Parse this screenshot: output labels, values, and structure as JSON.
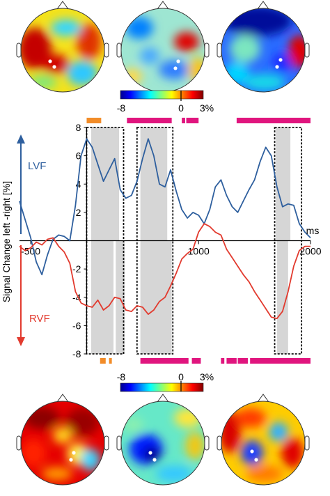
{
  "figure": {
    "colorbar_top": {
      "min_label": "-8",
      "mid_label": "0",
      "max_label": "3%"
    },
    "colorbar_bottom": {
      "min_label": "-8",
      "mid_label": "0",
      "max_label": "3%"
    },
    "lvf_label": "LVF",
    "rvf_label": "RVF",
    "lvf_color": "#2e5f9e",
    "rvf_color": "#e23a2e",
    "sig_orange": "#f28c28",
    "sig_magenta": "#e0157e"
  },
  "chart_data": {
    "type": "line",
    "xlabel": "ms",
    "ylabel": "Signal Change left -right [%]",
    "xlim": [
      -600,
      2000
    ],
    "ylim": [
      -8,
      8
    ],
    "x_ticks": [
      -500,
      1000,
      2000
    ],
    "x_tick_labels": [
      "-500",
      "1000",
      "2000"
    ],
    "y_ticks": [
      8,
      6,
      4,
      2,
      -2,
      -4,
      -6,
      -8
    ],
    "y_tick_labels": [
      "8",
      "6",
      "4",
      "2",
      "-2",
      "-4",
      "-6",
      "-8"
    ],
    "grid": false,
    "series": [
      {
        "name": "LVF",
        "color": "#2e5f9e",
        "x": [
          -600,
          -550,
          -500,
          -450,
          -400,
          -350,
          -300,
          -250,
          -200,
          -150,
          -100,
          -50,
          0,
          50,
          100,
          150,
          200,
          250,
          300,
          350,
          400,
          450,
          500,
          550,
          600,
          650,
          700,
          750,
          800,
          850,
          900,
          950,
          1000,
          1050,
          1100,
          1150,
          1200,
          1250,
          1300,
          1350,
          1400,
          1450,
          1500,
          1550,
          1600,
          1650,
          1700,
          1750,
          1800,
          1850,
          1900,
          1950,
          2000
        ],
        "values": [
          2.8,
          1.5,
          0.2,
          -1.5,
          -2.4,
          -1.0,
          0.1,
          0.4,
          0.3,
          0.0,
          2.5,
          6.0,
          7.2,
          6.6,
          5.4,
          4.2,
          5.0,
          5.8,
          3.6,
          3.0,
          3.2,
          4.2,
          5.8,
          7.2,
          6.0,
          4.0,
          3.8,
          5.0,
          3.5,
          2.2,
          1.6,
          2.0,
          1.8,
          1.2,
          2.2,
          3.8,
          4.3,
          3.2,
          2.4,
          2.0,
          2.8,
          3.6,
          4.3,
          5.6,
          6.6,
          6.0,
          3.8,
          2.4,
          2.6,
          2.5,
          1.2,
          0.6,
          0.2
        ]
      },
      {
        "name": "RVF",
        "color": "#e23a2e",
        "x": [
          -600,
          -550,
          -500,
          -450,
          -400,
          -350,
          -300,
          -250,
          -200,
          -150,
          -100,
          -50,
          0,
          50,
          100,
          150,
          200,
          250,
          300,
          350,
          400,
          450,
          500,
          550,
          600,
          650,
          700,
          750,
          800,
          850,
          900,
          950,
          1000,
          1050,
          1100,
          1150,
          1200,
          1250,
          1300,
          1350,
          1400,
          1450,
          1500,
          1550,
          1600,
          1650,
          1700,
          1750,
          1800,
          1850,
          1900,
          1950,
          2000
        ],
        "values": [
          -0.4,
          -0.7,
          -0.5,
          -0.1,
          -0.3,
          0.1,
          0.2,
          -0.4,
          -0.8,
          -1.6,
          -3.6,
          -4.4,
          -4.6,
          -4.7,
          -4.2,
          -4.9,
          -4.6,
          -4.0,
          -4.1,
          -4.9,
          -5.0,
          -4.6,
          -4.7,
          -5.2,
          -4.9,
          -4.3,
          -4.0,
          -3.2,
          -2.3,
          -1.3,
          -0.9,
          -0.6,
          0.6,
          1.2,
          1.0,
          0.6,
          0.4,
          -0.6,
          -1.2,
          -1.8,
          -2.4,
          -2.9,
          -3.6,
          -4.2,
          -4.8,
          -5.4,
          -5.5,
          -5.0,
          -3.6,
          -1.8,
          -0.7,
          -0.4,
          -0.4
        ]
      }
    ],
    "highlight_windows": [
      {
        "x0": 0,
        "x1": 330
      },
      {
        "x0": 450,
        "x1": 770
      },
      {
        "x0": 1680,
        "x1": 1920
      }
    ],
    "shaded_bands": [
      {
        "series": "LVF",
        "x0": 40,
        "x1": 290
      },
      {
        "series": "LVF",
        "x0": 480,
        "x1": 720
      },
      {
        "series": "LVF",
        "x0": 1690,
        "x1": 1820
      },
      {
        "series": "RVF",
        "x0": 40,
        "x1": 240
      },
      {
        "series": "RVF",
        "x0": 260,
        "x1": 340
      },
      {
        "series": "RVF",
        "x0": 480,
        "x1": 760
      },
      {
        "series": "RVF",
        "x0": 1700,
        "x1": 1800
      }
    ],
    "significance_top": [
      {
        "x0": 0,
        "x1": 130,
        "color": "#f28c28"
      },
      {
        "x0": 360,
        "x1": 760,
        "color": "#e0157e"
      },
      {
        "x0": 850,
        "x1": 880,
        "color": "#e0157e"
      },
      {
        "x0": 890,
        "x1": 1000,
        "color": "#e0157e"
      },
      {
        "x0": 1340,
        "x1": 2000,
        "color": "#e0157e"
      }
    ],
    "significance_bottom": [
      {
        "x0": 120,
        "x1": 170,
        "color": "#f28c28"
      },
      {
        "x0": 200,
        "x1": 225,
        "color": "#f28c28"
      },
      {
        "x0": 480,
        "x1": 910,
        "color": "#e0157e"
      },
      {
        "x0": 940,
        "x1": 1020,
        "color": "#e0157e"
      },
      {
        "x0": 1200,
        "x1": 1230,
        "color": "#e0157e"
      },
      {
        "x0": 1250,
        "x1": 1340,
        "color": "#e0157e"
      },
      {
        "x0": 1350,
        "x1": 1440,
        "color": "#e0157e"
      },
      {
        "x0": 1460,
        "x1": 2000,
        "color": "#e0157e"
      }
    ]
  }
}
